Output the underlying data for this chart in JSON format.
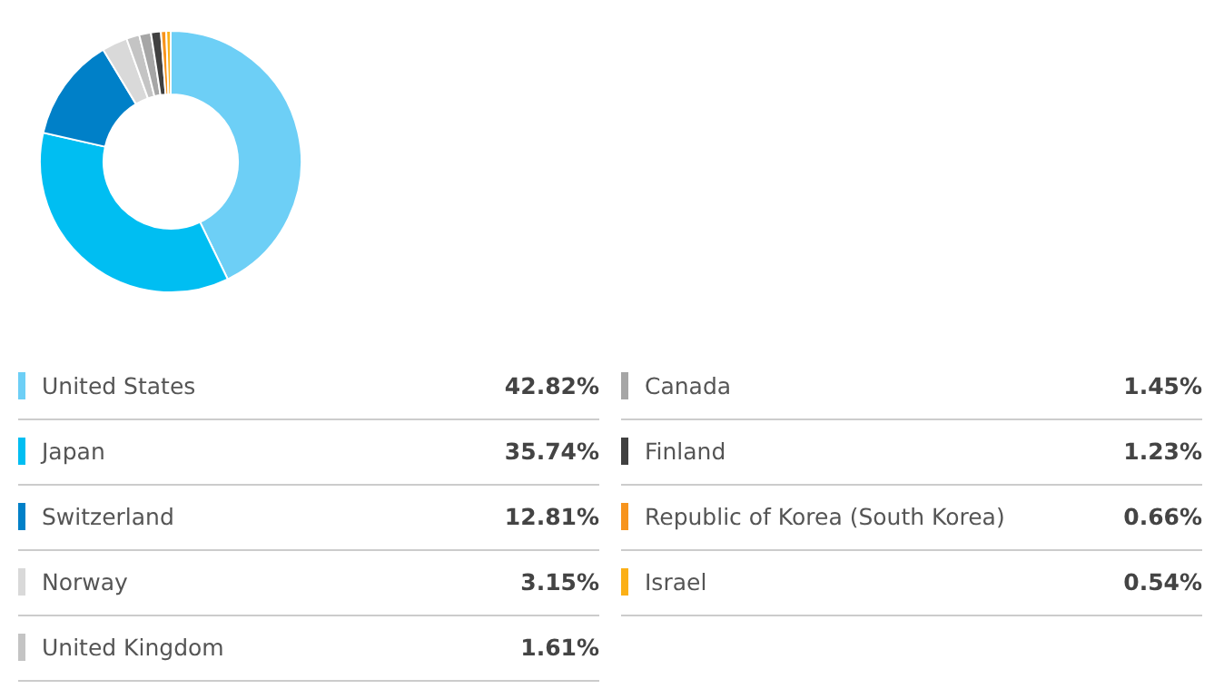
{
  "chart_data": {
    "type": "donut",
    "categories": [
      "United States",
      "Japan",
      "Switzerland",
      "Norway",
      "United Kingdom",
      "Canada",
      "Finland",
      "Republic of Korea (South Korea)",
      "Israel"
    ],
    "values": [
      42.82,
      35.74,
      12.81,
      3.15,
      1.61,
      1.45,
      1.23,
      0.66,
      0.54
    ],
    "value_labels": [
      "42.82%",
      "35.74%",
      "12.81%",
      "3.15%",
      "1.61%",
      "1.45%",
      "1.23%",
      "0.66%",
      "0.54%"
    ],
    "colors": [
      "#6dcff6",
      "#00bef2",
      "#0080c8",
      "#d9d9d9",
      "#c4c4c4",
      "#a6a6a6",
      "#404040",
      "#f7941d",
      "#fbb017"
    ],
    "legend": "bottom"
  }
}
